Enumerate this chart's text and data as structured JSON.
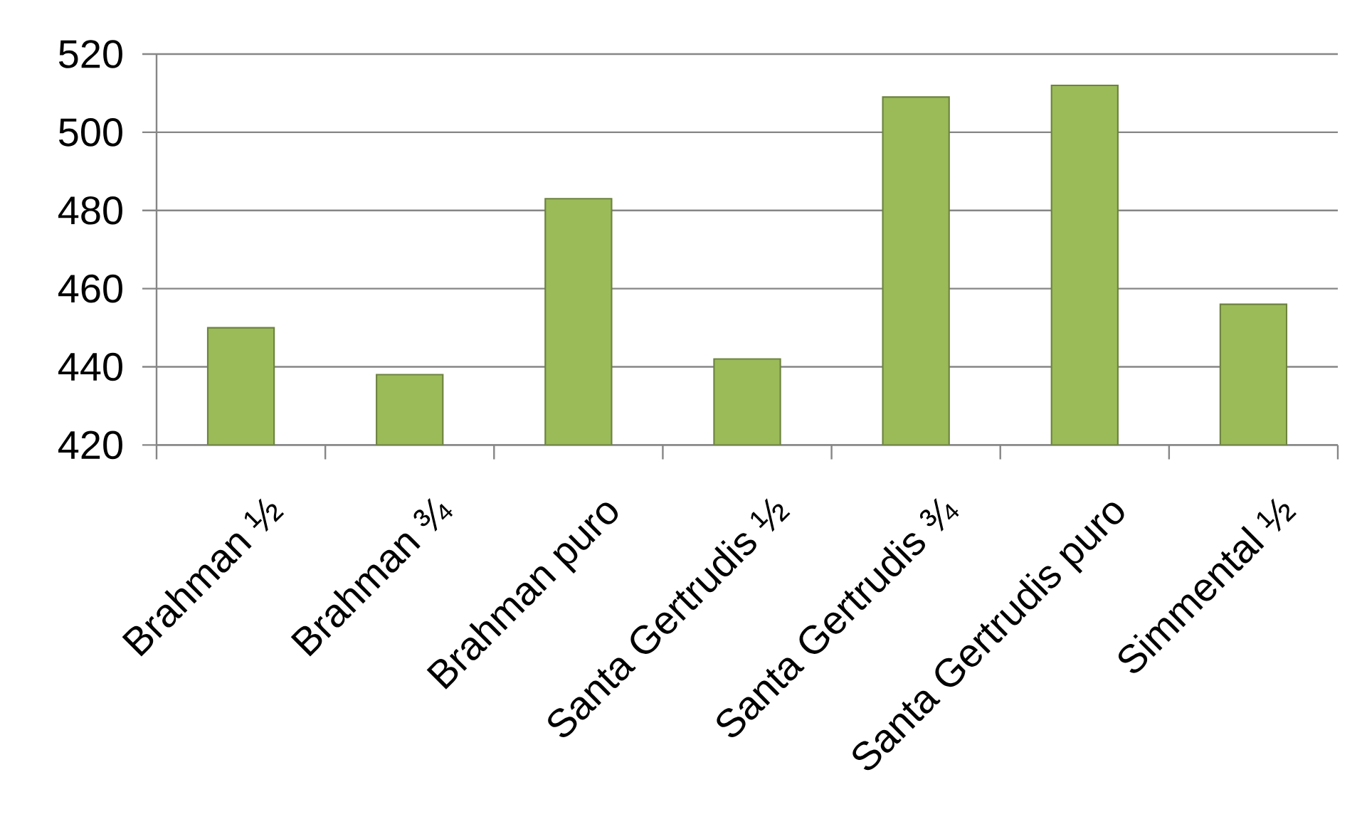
{
  "chart_data": {
    "type": "bar",
    "categories": [
      "Brahman ½",
      "Brahman ¾",
      "Brahman puro",
      "Santa Gertrudis ½",
      "Santa Gertrudis ¾",
      "Santa Gertrudis puro",
      "Simmental ½"
    ],
    "values": [
      450,
      438,
      483,
      442,
      509,
      512,
      456
    ],
    "color": "#9bbb59",
    "ylim": [
      420,
      520
    ],
    "yticks": [
      420,
      440,
      460,
      480,
      500,
      520
    ],
    "grid": "y"
  }
}
